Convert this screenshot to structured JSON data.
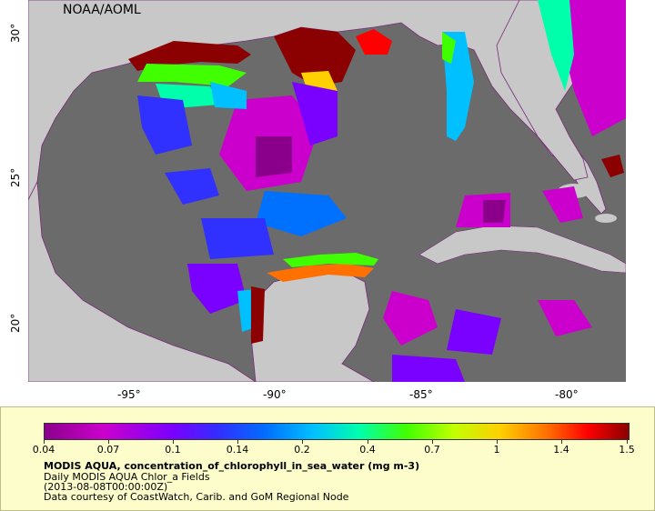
{
  "map": {
    "credit": "NOAA/AOML",
    "lon_ticks": [
      "-95°",
      "-90°",
      "-85°",
      "-80°"
    ],
    "lat_ticks": [
      "30°",
      "25°",
      "20°"
    ],
    "lon_range": [
      -98,
      -78
    ],
    "lat_range": [
      18,
      31
    ],
    "colors": {
      "land": "#c8c8c8",
      "ocean_no_data": "#6b6b6b",
      "borders": "#7a2a7a"
    }
  },
  "legend": {
    "tick_labels": [
      "0.04",
      "0.07",
      "0.1",
      "0.14",
      "0.2",
      "0.4",
      "0.7",
      "1",
      "1.4",
      "1.5"
    ],
    "title": "MODIS AQUA, concentration_of_chlorophyll_in_sea_water (mg m-3)",
    "subtitle": "Daily MODIS AQUA Chlor_a Fields",
    "date": "(2013-08-08T00:00:00Z)",
    "courtesy": "Data courtesy of CoastWatch, Carib. and GoM Regional Node"
  }
}
